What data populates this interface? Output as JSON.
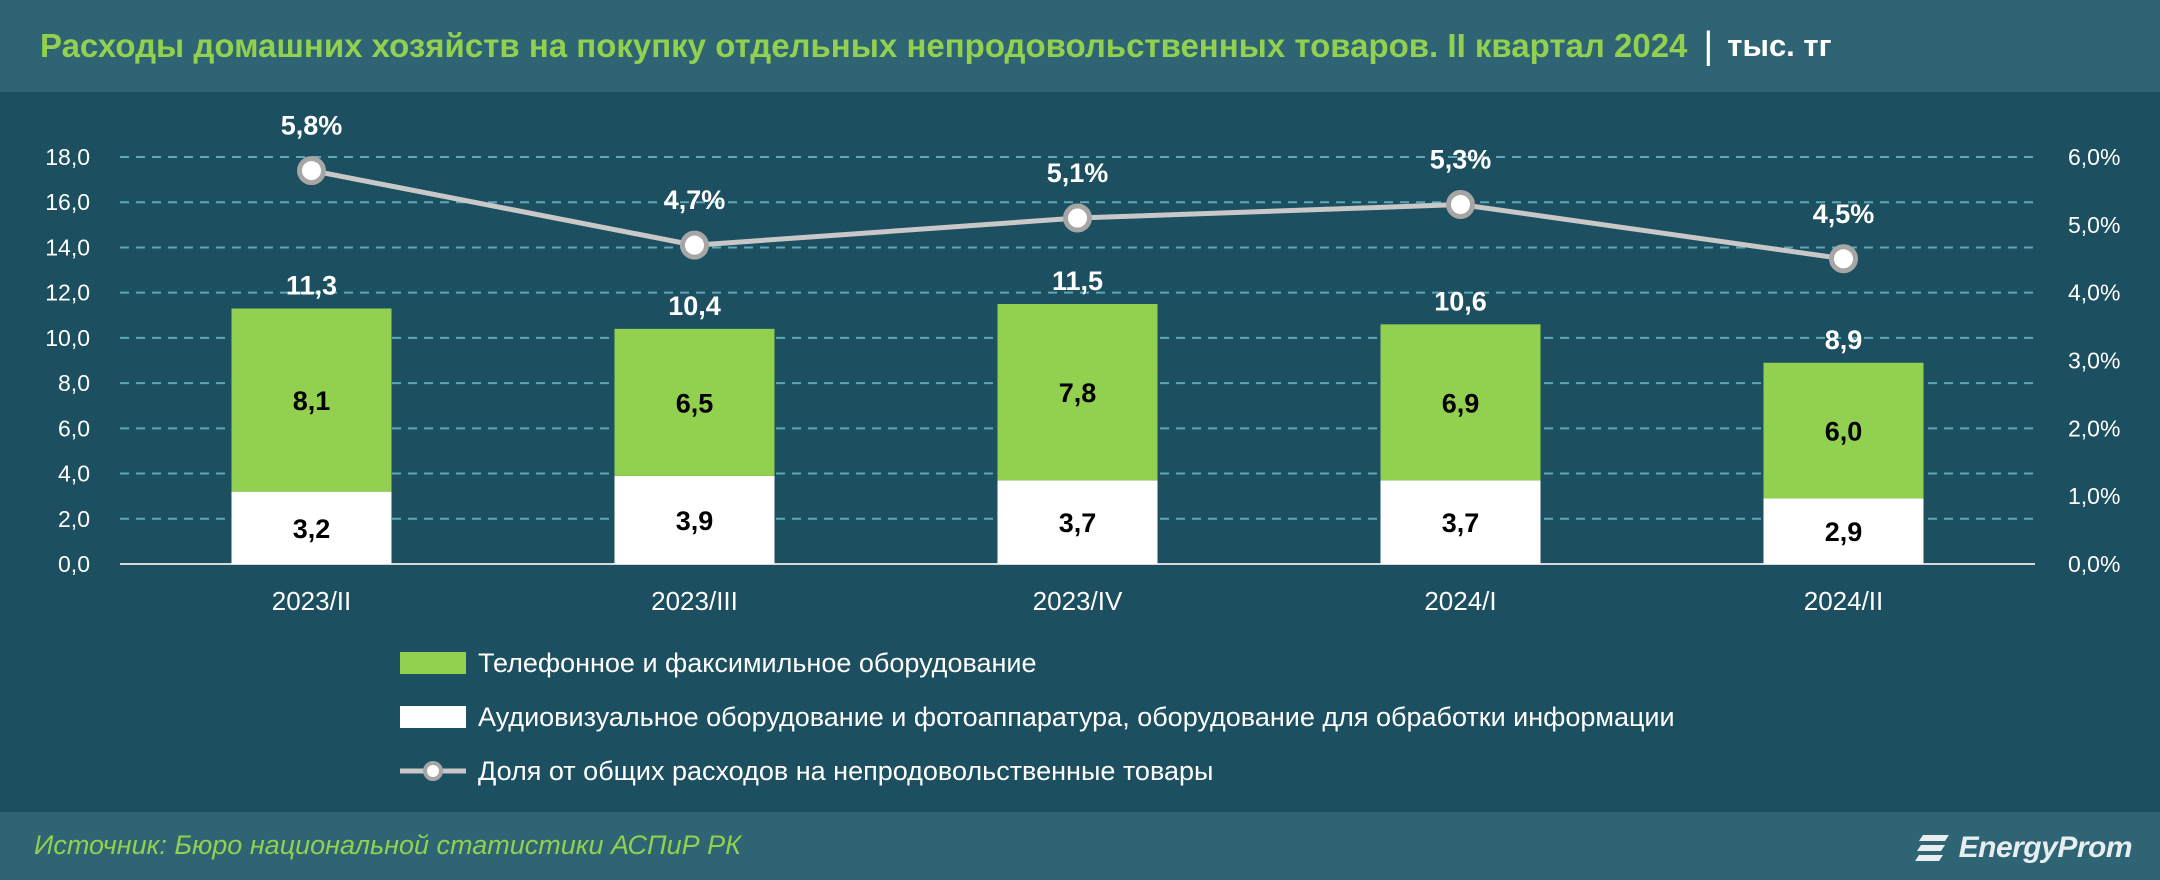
{
  "header": {
    "title": "Расходы домашних хозяйств на покупку отдельных непродовольственных товаров. II квартал 2024",
    "separator": "|",
    "unit": "тыс. тг"
  },
  "footer": {
    "source": "Источник: Бюро национальной статистики АСПиР РК",
    "logo": "EnergyProm"
  },
  "colors": {
    "background": "#1c4f5f",
    "header_bg": "#2e6474",
    "phones": "#92d050",
    "audiovisual": "#ffffff",
    "share_line": "#c8c8c8",
    "title": "#92d050"
  },
  "chart_data": {
    "type": "bar",
    "stacked": true,
    "categories": [
      "2023/II",
      "2023/III",
      "2023/IV",
      "2024/I",
      "2024/II"
    ],
    "series": [
      {
        "name": "Аудиовизуальное оборудование и фотоаппаратура, оборудование для обработки информации",
        "values": [
          3.2,
          3.9,
          3.7,
          3.7,
          2.9
        ],
        "labels": [
          "3,2",
          "3,9",
          "3,7",
          "3,7",
          "2,9"
        ]
      },
      {
        "name": "Телефонное и факсимильное оборудование",
        "values": [
          8.1,
          6.5,
          7.8,
          6.9,
          6.0
        ],
        "labels": [
          "8,1",
          "6,5",
          "7,8",
          "6,9",
          "6,0"
        ]
      }
    ],
    "totals": {
      "values": [
        11.3,
        10.4,
        11.5,
        10.6,
        8.9
      ],
      "labels": [
        "11,3",
        "10,4",
        "11,5",
        "10,6",
        "8,9"
      ]
    },
    "line": {
      "name": "Доля от общих расходов на непродовольственные товары",
      "values": [
        5.8,
        4.7,
        5.1,
        5.3,
        4.5
      ],
      "labels": [
        "5,8%",
        "4,7%",
        "5,1%",
        "5,3%",
        "4,5%"
      ],
      "axis": "right"
    },
    "ylim": [
      0,
      18
    ],
    "y_ticks": [
      "0,0",
      "2,0",
      "4,0",
      "6,0",
      "8,0",
      "10,0",
      "12,0",
      "14,0",
      "16,0",
      "18,0"
    ],
    "y2lim": [
      0,
      6
    ],
    "y2_ticks": [
      "0,0%",
      "1,0%",
      "2,0%",
      "3,0%",
      "4,0%",
      "5,0%",
      "6,0%"
    ],
    "grid": true,
    "legend_position": "bottom"
  }
}
